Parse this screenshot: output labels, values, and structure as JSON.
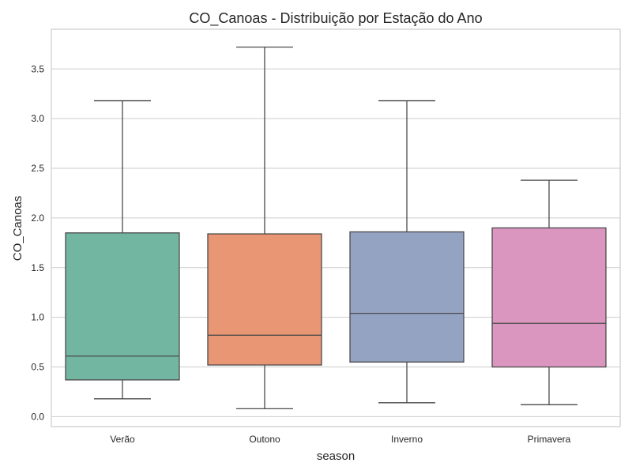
{
  "chart_data": {
    "type": "box",
    "title": "CO_Canoas - Distribuição por Estação do Ano",
    "xlabel": "season",
    "ylabel": "CO_Canoas",
    "ylim": [
      -0.1,
      3.9
    ],
    "yticks": [
      0.0,
      0.5,
      1.0,
      1.5,
      2.0,
      2.5,
      3.0,
      3.5
    ],
    "ytick_labels": [
      "0.0",
      "0.5",
      "1.0",
      "1.5",
      "2.0",
      "2.5",
      "3.0",
      "3.5"
    ],
    "grid": true,
    "categories": [
      "Verão",
      "Outono",
      "Inverno",
      "Primavera"
    ],
    "colors": [
      "#72b6a1",
      "#e99675",
      "#95a3c3",
      "#db96c0"
    ],
    "boxes": [
      {
        "whisker_low": 0.18,
        "q1": 0.37,
        "median": 0.61,
        "q3": 1.85,
        "whisker_high": 3.18
      },
      {
        "whisker_low": 0.08,
        "q1": 0.52,
        "median": 0.82,
        "q3": 1.84,
        "whisker_high": 3.72
      },
      {
        "whisker_low": 0.14,
        "q1": 0.55,
        "median": 1.04,
        "q3": 1.86,
        "whisker_high": 3.18
      },
      {
        "whisker_low": 0.12,
        "q1": 0.5,
        "median": 0.94,
        "q3": 1.9,
        "whisker_high": 2.38
      }
    ]
  }
}
